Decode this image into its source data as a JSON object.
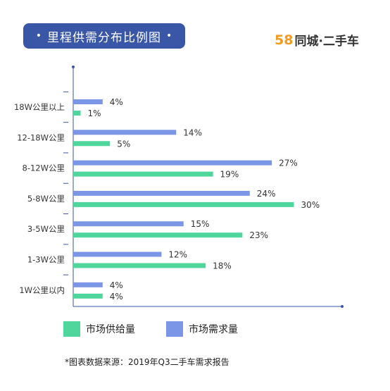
{
  "title": "里程供需分布比例图",
  "title_dot": "•",
  "brand": {
    "num": "58",
    "text": "同城·二手车"
  },
  "colors": {
    "supply": "#4fd69c",
    "demand": "#7b96e6",
    "axis": "#3a56a7",
    "title_bg": "#3a56a7",
    "brand_num": "#f39a1f"
  },
  "source": "*图表数据来源：2019年Q3二手车需求报告",
  "chart_data": {
    "type": "bar",
    "orientation": "horizontal",
    "categories": [
      "18W公里以上",
      "12-18W公里",
      "8-12W公里",
      "5-8W公里",
      "3-5W公里",
      "1-3W公里",
      "1W公里以内"
    ],
    "series": [
      {
        "name": "市场需求量",
        "values": [
          4,
          14,
          27,
          24,
          15,
          12,
          4
        ],
        "labels": [
          "4%",
          "14%",
          "27%",
          "24%",
          "15%",
          "12%",
          "4%"
        ]
      },
      {
        "name": "市场供给量",
        "values": [
          1,
          5,
          19,
          30,
          23,
          18,
          4
        ],
        "labels": [
          "1%",
          "5%",
          "19%",
          "30%",
          "23%",
          "18%",
          "4%"
        ]
      }
    ],
    "unit": "%",
    "xlim": [
      0,
      43
    ],
    "legend_position": "bottom"
  }
}
